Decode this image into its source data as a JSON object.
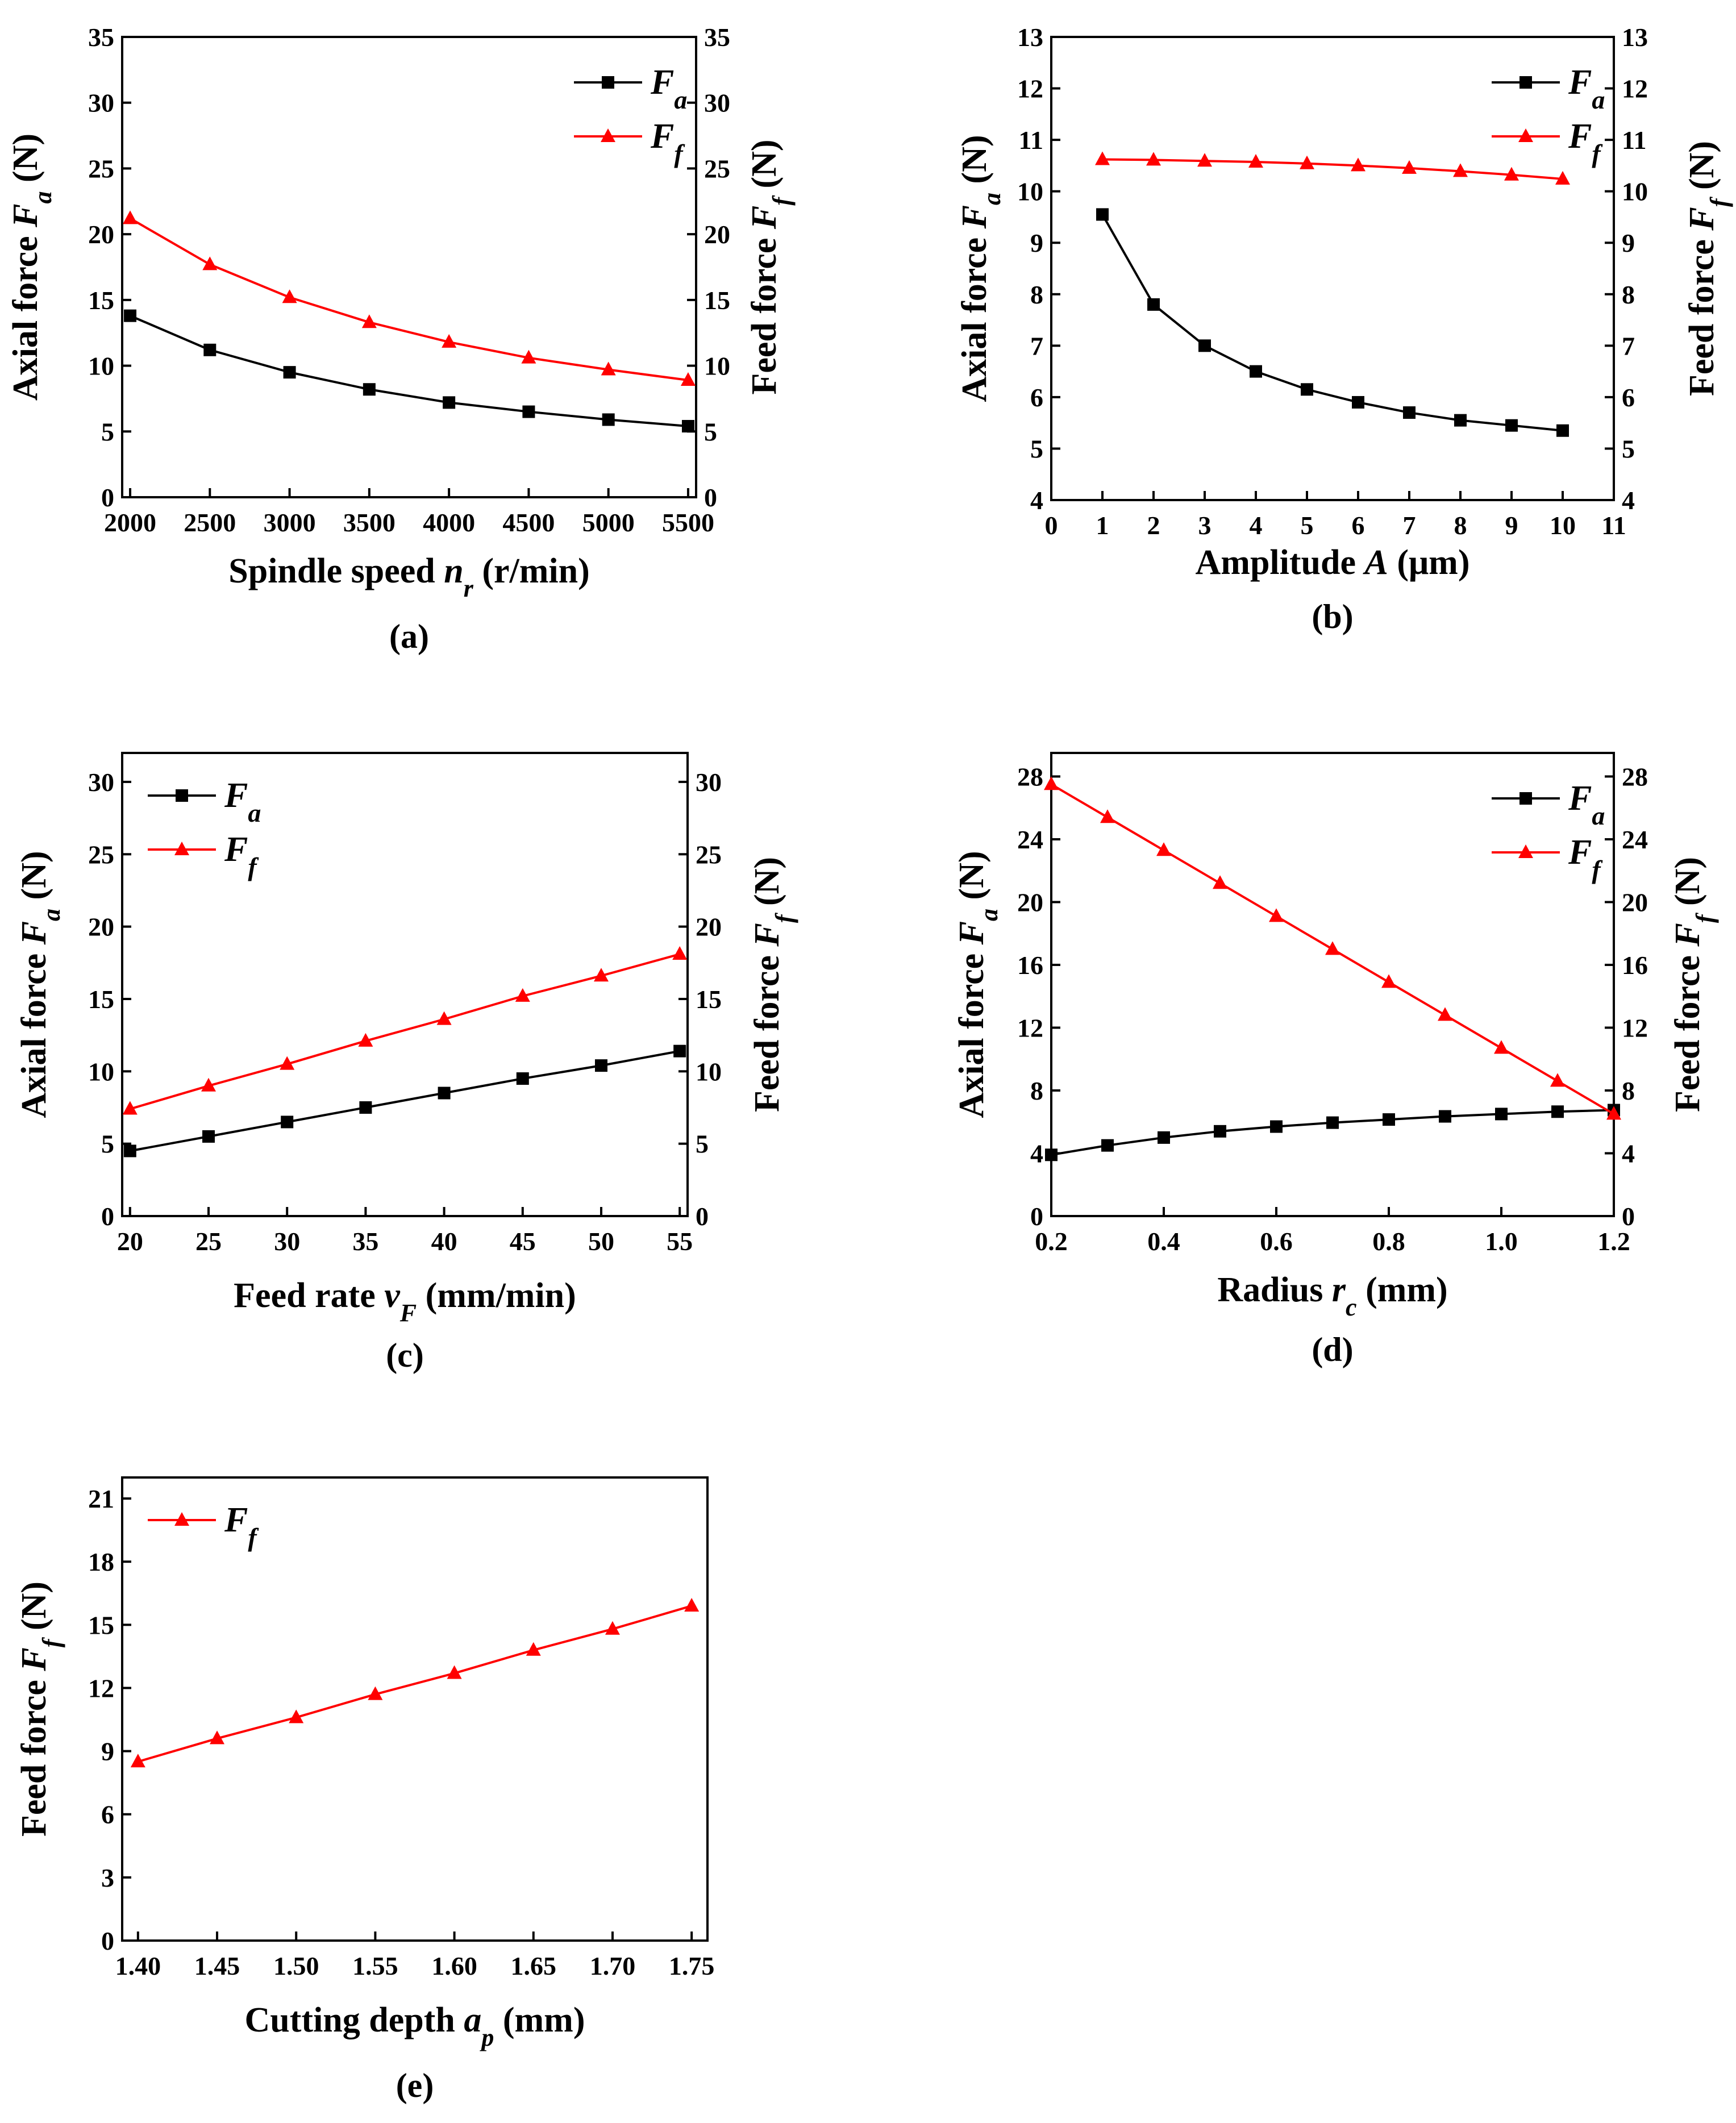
{
  "chart_data": [
    {
      "id": "a",
      "type": "line",
      "caption": "(a)",
      "x": [
        2000,
        2500,
        3000,
        3500,
        4000,
        4500,
        5000,
        5500
      ],
      "xlim": [
        1950,
        5550
      ],
      "xticks": [
        2000,
        2500,
        3000,
        3500,
        4000,
        4500,
        5000,
        5500
      ],
      "xlabel": "Spindle speed nr (r/min)",
      "xlabel_parts": [
        {
          "t": "Spindle speed ",
          "s": "n"
        },
        {
          "t": "",
          "s": "r",
          "sub": true
        },
        {
          "t": "  (r/min)",
          "s": ""
        }
      ],
      "ylim": [
        0,
        35
      ],
      "yticks": [
        0,
        5,
        10,
        15,
        20,
        25,
        30,
        35
      ],
      "ylabel_left": "Axial force Fa (N)",
      "ylabel_left_parts": [
        {
          "t": "Axial force "
        },
        {
          "t": "F",
          "i": true
        },
        {
          "t": "a",
          "i": true,
          "sub": true
        },
        {
          "t": "  (N)"
        }
      ],
      "ylabel_right": "Feed force Ff (N)",
      "ylabel_right_parts": [
        {
          "t": "Feed  force "
        },
        {
          "t": "F",
          "i": true
        },
        {
          "t": "f",
          "i": true,
          "sub": true
        },
        {
          "t": " (N)"
        }
      ],
      "legend_pos": "top-right",
      "legend_italic": true,
      "series": [
        {
          "name": "Fa",
          "label": "F",
          "sub": "a",
          "color": "#000000",
          "marker": "square",
          "values": [
            13.8,
            11.2,
            9.5,
            8.2,
            7.2,
            6.5,
            5.9,
            5.4
          ]
        },
        {
          "name": "Ff",
          "label": "F",
          "sub": "f",
          "color": "#ff0000",
          "marker": "triangle",
          "values": [
            21.2,
            17.7,
            15.2,
            13.3,
            11.8,
            10.6,
            9.7,
            8.9
          ]
        }
      ]
    },
    {
      "id": "b",
      "type": "line",
      "caption": "(b)",
      "x": [
        1,
        2,
        3,
        4,
        5,
        6,
        7,
        8,
        9,
        10
      ],
      "xlim": [
        0,
        11
      ],
      "xticks": [
        0,
        1,
        2,
        3,
        4,
        5,
        6,
        7,
        8,
        9,
        10,
        11
      ],
      "xlabel": "Amplitude A (μm)",
      "ylim": [
        4,
        13
      ],
      "yticks": [
        4,
        5,
        6,
        7,
        8,
        9,
        10,
        11,
        12,
        13
      ],
      "ylabel_left": "Axial force Fa (N)",
      "ylabel_right": "Feed force Ff (N)",
      "legend_pos": "top-right",
      "legend_italic": true,
      "series": [
        {
          "name": "Fa",
          "label": "F",
          "sub": "a",
          "color": "#000000",
          "marker": "square",
          "values": [
            9.55,
            7.8,
            7.0,
            6.5,
            6.15,
            5.9,
            5.7,
            5.55,
            5.45,
            5.35
          ]
        },
        {
          "name": "Ff",
          "label": "F",
          "sub": "f",
          "color": "#ff0000",
          "marker": "triangle",
          "values": [
            10.62,
            10.61,
            10.59,
            10.57,
            10.54,
            10.5,
            10.45,
            10.39,
            10.32,
            10.24
          ]
        }
      ]
    },
    {
      "id": "c",
      "type": "line",
      "caption": "(c)",
      "x": [
        20,
        25,
        30,
        35,
        40,
        45,
        50,
        55
      ],
      "xlim": [
        19.5,
        55.5
      ],
      "xticks": [
        20,
        25,
        30,
        35,
        40,
        45,
        50,
        55
      ],
      "xlabel": "Feed rate vF (mm/min)",
      "ylim": [
        0,
        32
      ],
      "yticks": [
        0,
        5,
        10,
        15,
        20,
        25,
        30
      ],
      "ylabel_left": "Axial force Fa (N)",
      "ylabel_right": "Feed force Ff (N)",
      "legend_pos": "top-left",
      "legend_italic": false,
      "series": [
        {
          "name": "Fa",
          "label": "F",
          "sub": "a",
          "color": "#000000",
          "marker": "square",
          "values": [
            4.5,
            5.5,
            6.5,
            7.5,
            8.5,
            9.5,
            10.4,
            11.4
          ]
        },
        {
          "name": "Ff",
          "label": "F",
          "sub": "f",
          "color": "#ff0000",
          "marker": "triangle",
          "values": [
            7.4,
            9.0,
            10.5,
            12.1,
            13.6,
            15.2,
            16.6,
            18.1
          ]
        }
      ]
    },
    {
      "id": "d",
      "type": "line",
      "caption": "(d)",
      "x": [
        0.2,
        0.3,
        0.4,
        0.5,
        0.6,
        0.7,
        0.8,
        0.9,
        1.0,
        1.1,
        1.2
      ],
      "xlim": [
        0.2,
        1.2
      ],
      "xticks": [
        0.2,
        0.4,
        0.6,
        0.8,
        1.0,
        1.2
      ],
      "xlabel": "Radius rc (mm)",
      "ylim": [
        0,
        29.5
      ],
      "yticks": [
        0,
        4,
        8,
        12,
        16,
        20,
        24,
        28
      ],
      "ylabel_left": "Axial force Fa (N)",
      "ylabel_right": "Feed force Ff (N)",
      "legend_pos": "top-right",
      "legend_italic": true,
      "series": [
        {
          "name": "Fa",
          "label": "F",
          "sub": "a",
          "color": "#000000",
          "marker": "square",
          "values": [
            3.9,
            4.5,
            5.0,
            5.4,
            5.7,
            5.95,
            6.15,
            6.35,
            6.5,
            6.65,
            6.75
          ]
        },
        {
          "name": "Ff",
          "label": "F",
          "sub": "f",
          "color": "#ff0000",
          "marker": "triangle",
          "values": [
            27.5,
            25.4,
            23.3,
            21.2,
            19.1,
            17.0,
            14.9,
            12.8,
            10.7,
            8.6,
            6.5
          ]
        }
      ]
    },
    {
      "id": "e",
      "type": "line",
      "caption": "(e)",
      "x": [
        1.4,
        1.45,
        1.5,
        1.55,
        1.6,
        1.65,
        1.7,
        1.75
      ],
      "xlim": [
        1.39,
        1.76
      ],
      "xticks": [
        1.4,
        1.45,
        1.5,
        1.55,
        1.6,
        1.65,
        1.7,
        1.75
      ],
      "xlabel": "Cutting depth ap (mm)",
      "ylim": [
        0,
        22
      ],
      "yticks": [
        0,
        3,
        6,
        9,
        12,
        15,
        18,
        21
      ],
      "ylabel_left": "Feed force Ff (N)",
      "legend_pos": "top-left",
      "legend_italic": true,
      "series": [
        {
          "name": "Ff",
          "label": "F",
          "sub": "f",
          "color": "#ff0000",
          "marker": "triangle",
          "values": [
            8.5,
            9.6,
            10.6,
            11.7,
            12.7,
            13.8,
            14.8,
            15.9
          ]
        }
      ]
    }
  ]
}
